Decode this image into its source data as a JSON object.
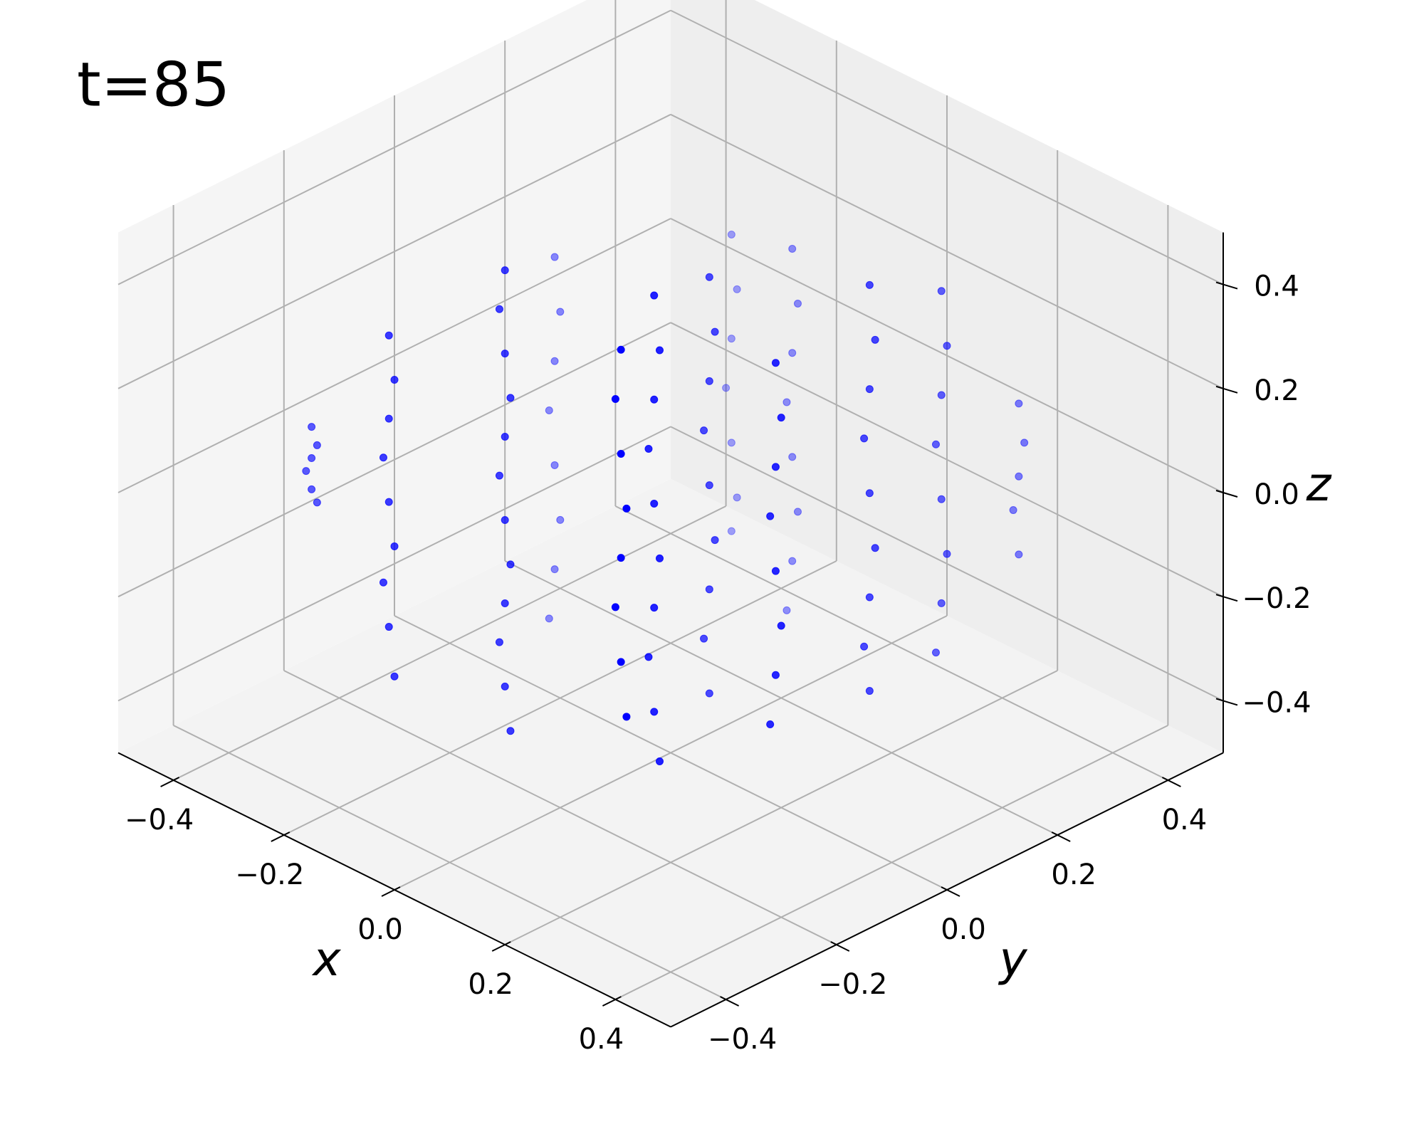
{
  "chart_data": {
    "type": "scatter3d",
    "title": "t=85",
    "xlabel": "x",
    "ylabel": "y",
    "zlabel": "z",
    "color": "#0000ff",
    "grid": true,
    "xlim": [
      -0.5,
      0.5
    ],
    "ylim": [
      -0.5,
      0.5
    ],
    "zlim": [
      -0.5,
      0.5
    ],
    "xticks": [
      {
        "value": -0.4,
        "label": "−0.4"
      },
      {
        "value": -0.2,
        "label": "−0.2"
      },
      {
        "value": 0,
        "label": "0.0"
      },
      0.2,
      0.4
    ],
    "yticks": [
      {
        "value": -0.4,
        "label": "−0.4"
      },
      {
        "value": -0.2,
        "label": "−0.2"
      },
      {
        "value": 0,
        "label": "0.0"
      },
      0.2,
      0.4
    ],
    "zticks": [
      {
        "value": -0.4,
        "label": "−0.4"
      },
      {
        "value": -0.2,
        "label": "−0.2"
      },
      {
        "value": 0,
        "label": "0.0"
      },
      0.2,
      0.4
    ],
    "x": [
      -0.35,
      -0.34,
      -0.35,
      -0.36,
      -0.35,
      -0.34,
      -0.2,
      -0.19,
      -0.2,
      -0.21,
      -0.2,
      -0.19,
      -0.21,
      -0.2,
      -0.19,
      -0.1,
      -0.11,
      -0.1,
      -0.09,
      -0.1,
      -0.11,
      -0.1,
      -0.09,
      -0.1,
      -0.11,
      -0.1,
      -0.09,
      -0.25,
      -0.24,
      -0.25,
      -0.26,
      -0.25,
      -0.24,
      -0.25,
      -0.26,
      0.15,
      0.14,
      0.15,
      0.16,
      0.15,
      0.14,
      0.15,
      0.16,
      0.1,
      0.11,
      0.1,
      0.09,
      0.1,
      0.11,
      0.1,
      0.09,
      0.1,
      0.11,
      0.05,
      0.06,
      0.05,
      0.04,
      0.05,
      0.06,
      0.05,
      0.04,
      0.05,
      -0.15,
      -0.14,
      -0.15,
      -0.16,
      -0.15,
      -0.14,
      -0.15,
      0.2,
      0.21,
      0.2,
      0.19,
      0.2,
      0.21,
      0.2,
      0.19,
      -0.05,
      -0.04,
      -0.05,
      -0.06,
      -0.05,
      -0.04,
      -0.05,
      -0.06,
      0.2,
      0.21,
      0.2,
      0.19,
      0.2,
      0.21,
      0.2,
      0.19,
      0.2,
      0.2,
      0.21,
      0.2,
      0.19,
      0.2,
      0.21,
      0.2,
      0.19,
      0.2,
      0.21,
      0.2,
      0.19,
      0.2
    ],
    "y": [
      -0.3,
      -0.3,
      -0.3,
      -0.3,
      -0.3,
      -0.3,
      -0.31,
      -0.31,
      -0.31,
      -0.31,
      -0.31,
      -0.31,
      -0.31,
      -0.31,
      -0.31,
      -0.2,
      -0.2,
      -0.2,
      -0.2,
      -0.2,
      -0.2,
      -0.2,
      -0.2,
      -0.2,
      -0.2,
      -0.2,
      -0.2,
      0.04,
      0.04,
      0.04,
      0.04,
      0.04,
      0.04,
      0.04,
      0.04,
      -0.24,
      -0.24,
      -0.24,
      -0.24,
      -0.24,
      -0.24,
      -0.24,
      -0.24,
      -0.13,
      -0.13,
      -0.13,
      -0.13,
      -0.13,
      -0.13,
      -0.13,
      -0.13,
      -0.13,
      -0.13,
      0.02,
      0.02,
      0.02,
      0.02,
      0.02,
      0.02,
      0.02,
      0.02,
      0.02,
      0.26,
      0.26,
      0.26,
      0.26,
      0.26,
      0.26,
      0.26,
      -0.01,
      -0.01,
      -0.01,
      -0.01,
      -0.01,
      -0.01,
      -0.01,
      -0.01,
      0.27,
      0.27,
      0.27,
      0.27,
      0.27,
      0.27,
      0.27,
      0.27,
      0.16,
      0.16,
      0.16,
      0.16,
      0.16,
      0.16,
      0.16,
      0.16,
      0.16,
      0.29,
      0.29,
      0.29,
      0.29,
      0.29,
      0.29,
      0.29,
      0.29,
      0.43,
      0.43,
      0.43,
      0.43,
      0.43
    ],
    "z": [
      0.1,
      0.07,
      0.04,
      0.01,
      -0.02,
      -0.04,
      0.36,
      0.28,
      0.2,
      0.12,
      0.04,
      -0.04,
      -0.12,
      -0.2,
      -0.29,
      0.48,
      0.4,
      0.32,
      0.24,
      0.16,
      0.08,
      0,
      -0.08,
      -0.16,
      -0.24,
      -0.32,
      -0.4,
      0.3,
      0.2,
      0.1,
      0,
      -0.1,
      -0.2,
      -0.3,
      -0.4,
      0.48,
      0.38,
      0.28,
      0.18,
      0.08,
      -0.02,
      -0.12,
      -0.22,
      0.5,
      0.4,
      0.3,
      0.2,
      0.1,
      0,
      -0.1,
      -0.2,
      -0.3,
      -0.39,
      0.43,
      0.33,
      0.23,
      0.13,
      0.03,
      -0.07,
      -0.17,
      -0.27,
      -0.37,
      0.28,
      0.18,
      0.08,
      -0.02,
      -0.12,
      -0.22,
      -0.29,
      0.36,
      0.26,
      0.16,
      0.06,
      -0.04,
      -0.14,
      -0.24,
      -0.34,
      0.3,
      0.2,
      0.1,
      0,
      -0.1,
      -0.2,
      -0.3,
      -0.4,
      0.42,
      0.32,
      0.22,
      0.12,
      0.02,
      -0.08,
      -0.18,
      -0.28,
      -0.36,
      0.34,
      0.24,
      0.14,
      0.04,
      -0.06,
      -0.16,
      -0.26,
      -0.36,
      0.05,
      -0.02,
      -0.09,
      -0.16,
      -0.24
    ]
  }
}
